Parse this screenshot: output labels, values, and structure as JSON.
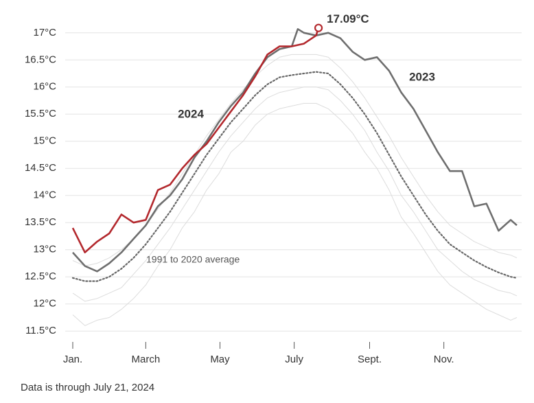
{
  "chart_data": {
    "type": "line",
    "xlim": [
      1,
      366
    ],
    "ylim": [
      11.3,
      17.2
    ],
    "xticks": [
      {
        "value": 1,
        "label": "Jan."
      },
      {
        "value": 61,
        "label": "March"
      },
      {
        "value": 122,
        "label": "May"
      },
      {
        "value": 183,
        "label": "July"
      },
      {
        "value": 245,
        "label": "Sept."
      },
      {
        "value": 306,
        "label": "Nov."
      }
    ],
    "yticks": [
      {
        "value": 11.5,
        "label": "11.5°C"
      },
      {
        "value": 12,
        "label": "12°C"
      },
      {
        "value": 12.5,
        "label": "12.5°C"
      },
      {
        "value": 13,
        "label": "13°C"
      },
      {
        "value": 13.5,
        "label": "13.5°C"
      },
      {
        "value": 14,
        "label": "14°C"
      },
      {
        "value": 14.5,
        "label": "14.5°C"
      },
      {
        "value": 15,
        "label": "15°C"
      },
      {
        "value": 15.5,
        "label": "15.5°C"
      },
      {
        "value": 16,
        "label": "16°C"
      },
      {
        "value": 16.5,
        "label": "16.5°C"
      },
      {
        "value": 17,
        "label": "17°C"
      }
    ],
    "grid": true,
    "series": [
      {
        "color": "#dcdcdc",
        "x": [
          1,
          11,
          21,
          31,
          41,
          51,
          61,
          71,
          81,
          91,
          101,
          111,
          121,
          131,
          141,
          151,
          161,
          171,
          181,
          191,
          201,
          211,
          221,
          231,
          241,
          251,
          261,
          271,
          281,
          291,
          301,
          311,
          321,
          331,
          341,
          351,
          361,
          366
        ],
        "values": [
          11.8,
          11.6,
          11.7,
          11.75,
          11.9,
          12.1,
          12.35,
          12.7,
          13.0,
          13.4,
          13.7,
          14.1,
          14.4,
          14.8,
          15.0,
          15.3,
          15.5,
          15.6,
          15.65,
          15.7,
          15.7,
          15.6,
          15.4,
          15.15,
          14.8,
          14.5,
          14.1,
          13.6,
          13.3,
          12.95,
          12.6,
          12.35,
          12.2,
          12.05,
          11.9,
          11.8,
          11.7,
          11.75
        ]
      },
      {
        "color": "#dcdcdc",
        "x": [
          1,
          11,
          21,
          31,
          41,
          51,
          61,
          71,
          81,
          91,
          101,
          111,
          121,
          131,
          141,
          151,
          161,
          171,
          181,
          191,
          201,
          211,
          221,
          231,
          241,
          251,
          261,
          271,
          281,
          291,
          301,
          311,
          321,
          331,
          341,
          351,
          361,
          366
        ],
        "values": [
          12.2,
          12.05,
          12.1,
          12.2,
          12.3,
          12.55,
          12.8,
          13.1,
          13.4,
          13.75,
          14.1,
          14.45,
          14.8,
          15.1,
          15.35,
          15.6,
          15.8,
          15.9,
          15.95,
          16.0,
          16.0,
          15.95,
          15.75,
          15.5,
          15.2,
          14.8,
          14.45,
          14.0,
          13.7,
          13.35,
          13.0,
          12.8,
          12.6,
          12.45,
          12.35,
          12.25,
          12.2,
          12.15
        ]
      },
      {
        "color": "#dcdcdc",
        "x": [
          1,
          11,
          21,
          31,
          41,
          51,
          61,
          71,
          81,
          91,
          101,
          111,
          121,
          131,
          141,
          151,
          161,
          171,
          181,
          191,
          201,
          211,
          221,
          231,
          241,
          251,
          261,
          271,
          281,
          291,
          301,
          311,
          321,
          331,
          341,
          351,
          361,
          366
        ],
        "values": [
          12.8,
          12.7,
          12.75,
          12.85,
          13.0,
          13.2,
          13.45,
          13.75,
          14.05,
          14.4,
          14.75,
          15.1,
          15.4,
          15.7,
          15.95,
          16.2,
          16.4,
          16.55,
          16.6,
          16.6,
          16.6,
          16.55,
          16.35,
          16.1,
          15.8,
          15.45,
          15.1,
          14.7,
          14.35,
          14.0,
          13.7,
          13.45,
          13.3,
          13.15,
          13.05,
          12.95,
          12.9,
          12.85
        ]
      },
      {
        "name": "1991 to 2020 average",
        "color": "#666666",
        "style": "dotted",
        "x": [
          1,
          11,
          21,
          31,
          41,
          51,
          61,
          71,
          81,
          91,
          101,
          111,
          121,
          131,
          141,
          151,
          161,
          171,
          181,
          191,
          201,
          211,
          221,
          231,
          241,
          251,
          261,
          271,
          281,
          291,
          301,
          311,
          321,
          331,
          341,
          351,
          361,
          366
        ],
        "values": [
          12.48,
          12.42,
          12.42,
          12.5,
          12.65,
          12.85,
          13.1,
          13.4,
          13.7,
          14.05,
          14.4,
          14.75,
          15.05,
          15.35,
          15.6,
          15.85,
          16.05,
          16.18,
          16.22,
          16.25,
          16.28,
          16.25,
          16.05,
          15.8,
          15.5,
          15.15,
          14.75,
          14.35,
          14.0,
          13.65,
          13.35,
          13.1,
          12.95,
          12.8,
          12.68,
          12.58,
          12.5,
          12.48
        ]
      },
      {
        "name": "2023",
        "color": "#6e6e6e",
        "x": [
          1,
          11,
          21,
          31,
          41,
          51,
          61,
          71,
          81,
          91,
          101,
          111,
          121,
          131,
          141,
          151,
          161,
          171,
          181,
          186,
          191,
          201,
          211,
          221,
          231,
          241,
          251,
          261,
          271,
          281,
          291,
          301,
          311,
          321,
          331,
          341,
          351,
          361,
          366
        ],
        "values": [
          12.95,
          12.7,
          12.6,
          12.75,
          12.95,
          13.2,
          13.45,
          13.8,
          14.0,
          14.3,
          14.7,
          15.0,
          15.35,
          15.65,
          15.9,
          16.25,
          16.55,
          16.7,
          16.75,
          17.07,
          17.0,
          16.95,
          17.0,
          16.9,
          16.65,
          16.5,
          16.55,
          16.3,
          15.9,
          15.6,
          15.2,
          14.8,
          14.45,
          14.45,
          13.8,
          13.85,
          13.35,
          13.55,
          13.45
        ]
      },
      {
        "name": "2024",
        "color": "#b3282d",
        "x": [
          1,
          11,
          21,
          31,
          41,
          51,
          61,
          71,
          81,
          91,
          101,
          111,
          121,
          131,
          141,
          151,
          161,
          171,
          181,
          191,
          201,
          203
        ],
        "values": [
          13.4,
          12.95,
          13.15,
          13.3,
          13.65,
          13.5,
          13.55,
          14.1,
          14.2,
          14.5,
          14.75,
          14.95,
          15.25,
          15.55,
          15.85,
          16.2,
          16.6,
          16.75,
          16.75,
          16.8,
          16.95,
          17.09
        ]
      }
    ],
    "peak_label": "17.09°C",
    "footnote": "Data is through July 21, 2024"
  }
}
